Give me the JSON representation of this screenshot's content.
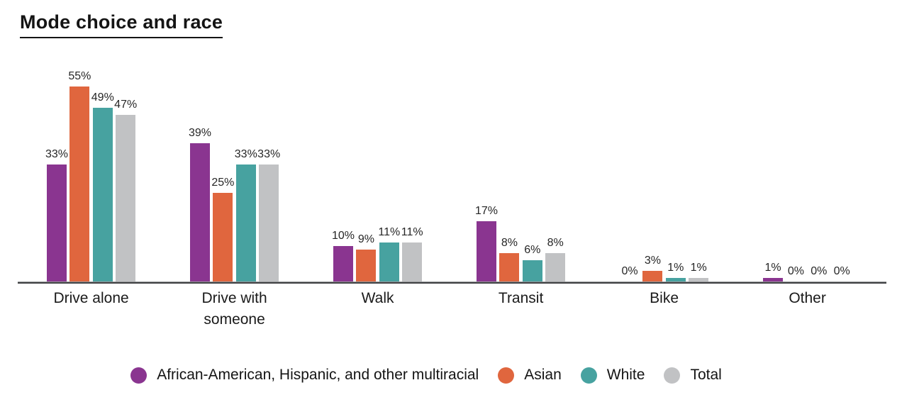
{
  "title": "Mode choice and race",
  "chart_data": {
    "type": "bar",
    "title": "Mode choice and race",
    "categories": [
      "Drive alone",
      "Drive with someone",
      "Walk",
      "Transit",
      "Bike",
      "Other"
    ],
    "series": [
      {
        "name": "African-American, Hispanic, and other multiracial",
        "color": "#8a3590",
        "values": [
          33,
          39,
          10,
          17,
          0,
          1
        ]
      },
      {
        "name": "Asian",
        "color": "#e0663e",
        "values": [
          55,
          25,
          9,
          8,
          3,
          0
        ]
      },
      {
        "name": "White",
        "color": "#47a2a0",
        "values": [
          49,
          33,
          11,
          6,
          1,
          0
        ]
      },
      {
        "name": "Total",
        "color": "#c1c2c4",
        "values": [
          47,
          33,
          11,
          8,
          1,
          0
        ]
      }
    ],
    "value_suffix": "%",
    "value_labels_shown": true,
    "ylim": [
      0,
      60
    ],
    "grid": false,
    "y_axis_shown": false,
    "legend_position": "bottom",
    "axis_line_color": "#404143"
  }
}
